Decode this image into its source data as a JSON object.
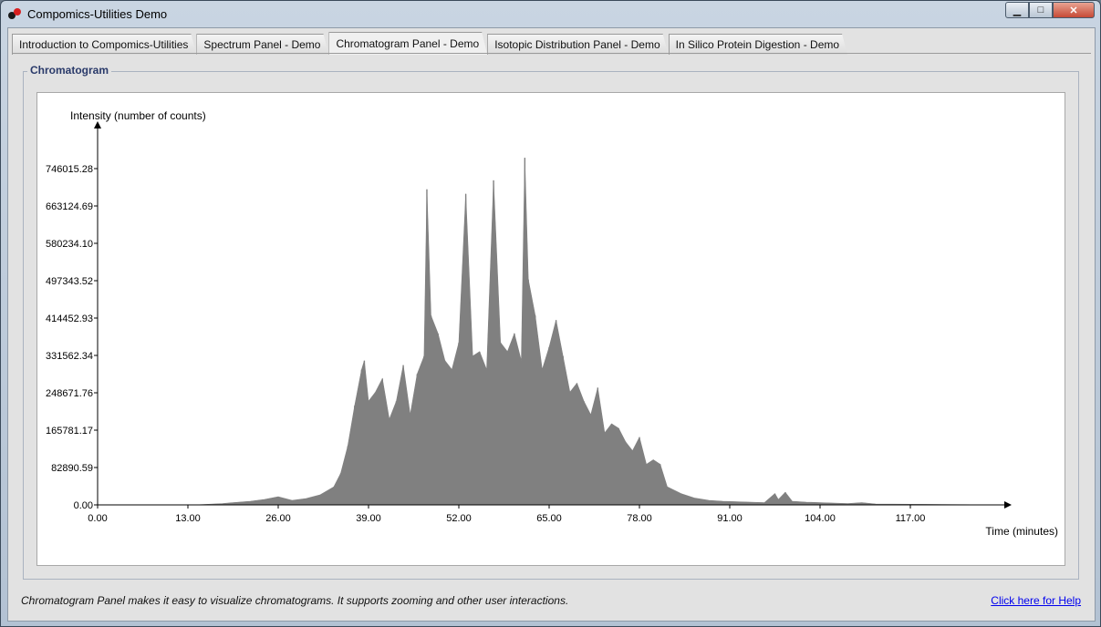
{
  "window": {
    "title": "Compomics-Utilities Demo",
    "controls": {
      "minimize_icon": "minimize-icon",
      "maximize_icon": "maximize-icon",
      "close_icon": "close-icon"
    }
  },
  "tabs": [
    {
      "label": "Introduction to Compomics-Utilities",
      "active": false
    },
    {
      "label": "Spectrum Panel - Demo",
      "active": false
    },
    {
      "label": "Chromatogram Panel - Demo",
      "active": true
    },
    {
      "label": "Isotopic Distribution Panel - Demo",
      "active": false
    },
    {
      "label": "In Silico Protein Digestion - Demo",
      "active": false
    }
  ],
  "group": {
    "title": "Chromatogram"
  },
  "chart_data": {
    "type": "area",
    "title": "",
    "xlabel": "Time (minutes)",
    "ylabel": "Intensity (number of counts)",
    "xlim": [
      0,
      130
    ],
    "ylim": [
      0,
      829000
    ],
    "x_ticks": [
      "0.00",
      "13.00",
      "26.00",
      "39.00",
      "52.00",
      "65.00",
      "78.00",
      "91.00",
      "104.00",
      "117.00"
    ],
    "y_ticks": [
      "0.00",
      "82890.59",
      "165781.17",
      "248671.76",
      "331562.34",
      "414452.93",
      "497343.52",
      "580234.10",
      "663124.69",
      "746015.28"
    ],
    "color": "#808080",
    "x": [
      0,
      14,
      18,
      22,
      24,
      26,
      28,
      30,
      32,
      34,
      35,
      36,
      37,
      38,
      38.4,
      39,
      40,
      41,
      42,
      43,
      44,
      45,
      46,
      47,
      47.4,
      48,
      49,
      50,
      51,
      52,
      53,
      54,
      55,
      56,
      57,
      58,
      59,
      60,
      61,
      61.5,
      62,
      63,
      64,
      65,
      66,
      67,
      68,
      69,
      70,
      71,
      72,
      73,
      74,
      75,
      76,
      77,
      78,
      79,
      80,
      81,
      82,
      84,
      86,
      88,
      90,
      92,
      94,
      96,
      97.5,
      98,
      99,
      100,
      102,
      104,
      106,
      108,
      110,
      112,
      130
    ],
    "y": [
      0,
      0,
      3000,
      8000,
      12000,
      18000,
      10000,
      14000,
      22000,
      40000,
      70000,
      130000,
      220000,
      300000,
      320000,
      230000,
      250000,
      280000,
      190000,
      230000,
      310000,
      200000,
      290000,
      330000,
      700000,
      420000,
      380000,
      320000,
      300000,
      360000,
      690000,
      330000,
      340000,
      300000,
      720000,
      360000,
      340000,
      380000,
      320000,
      770000,
      500000,
      420000,
      300000,
      350000,
      410000,
      330000,
      250000,
      270000,
      230000,
      200000,
      260000,
      160000,
      180000,
      170000,
      140000,
      120000,
      150000,
      90000,
      100000,
      90000,
      40000,
      25000,
      15000,
      10000,
      8000,
      7000,
      6000,
      5000,
      25000,
      12000,
      28000,
      8000,
      6000,
      5000,
      4000,
      3000,
      5000,
      2000,
      0
    ]
  },
  "footer": {
    "status": "Chromatogram Panel makes it easy to visualize chromatograms. It supports zooming and other user interactions.",
    "help_link": "Click here for Help"
  }
}
